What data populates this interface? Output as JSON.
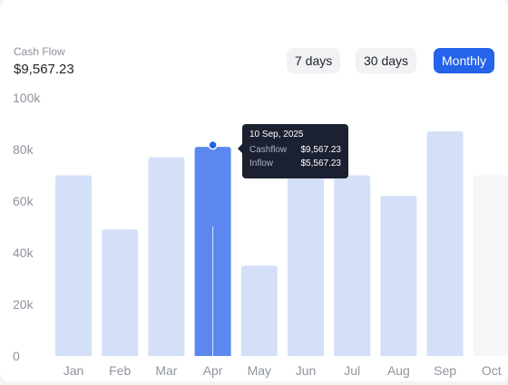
{
  "summary": {
    "label": "Cash Flow",
    "value": "$9,567.23"
  },
  "ranges": [
    {
      "label": "7 days",
      "active": false
    },
    {
      "label": "30 days",
      "active": false
    },
    {
      "label": "Monthly",
      "active": true
    }
  ],
  "colors": {
    "bar": "#d4e0f8",
    "bar_active": "#5b88ef",
    "bar_faded": "#f5f6f8",
    "accent": "#2563eb",
    "tooltip_bg": "#1b2130"
  },
  "tooltip": {
    "date": "10 Sep, 2025",
    "rows": [
      {
        "label": "Cashflow",
        "value": "$9,567.23"
      },
      {
        "label": "Inflow",
        "value": "$5,567.23"
      }
    ]
  },
  "chart_data": {
    "type": "bar",
    "categories": [
      "Jan",
      "Feb",
      "Mar",
      "Apr",
      "May",
      "Jun",
      "Jul",
      "Aug",
      "Sep",
      "Oct"
    ],
    "values": [
      70000,
      49000,
      77000,
      81000,
      35000,
      72000,
      70000,
      62000,
      87000,
      70000
    ],
    "highlighted_category": "Apr",
    "faded_category": "Oct",
    "yticks": [
      0,
      20000,
      40000,
      60000,
      80000,
      100000
    ],
    "ytick_labels": [
      "0",
      "20k",
      "40k",
      "60k",
      "80k",
      "100k"
    ],
    "ylim": [
      0,
      100000
    ],
    "grid": false,
    "title": "",
    "xlabel": "",
    "ylabel": ""
  }
}
